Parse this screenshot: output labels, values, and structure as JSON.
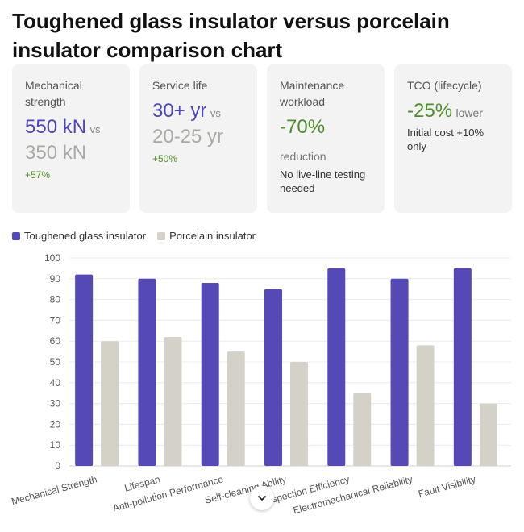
{
  "title": "Toughened glass insulator versus porcelain insulator comparison chart",
  "cards": {
    "mechanical": {
      "label": "Mechanical strength",
      "glass": "550 kN",
      "vs": "vs",
      "porcelain": "350 kN",
      "delta": "+57%"
    },
    "service": {
      "label": "Service life",
      "glass": "30+ yr",
      "vs": "vs",
      "porcelain": "20-25 yr",
      "delta": "+50%"
    },
    "maintenance": {
      "label": "Maintenance workload",
      "value": "-70%",
      "sub": "reduction",
      "note": "No live-line testing needed"
    },
    "tco": {
      "label": "TCO (lifecycle)",
      "value": "-25%",
      "sub": "lower",
      "note": "Initial cost +10% only"
    }
  },
  "colors": {
    "glass": "#5449b7",
    "porcelain": "#d3d1c8",
    "positive": "#4f8f2a"
  },
  "chart_data": {
    "type": "bar",
    "categories": [
      "Mechanical Strength",
      "Lifespan",
      "Anti-pollution Performance",
      "Self-cleaning Ability",
      "Inspection Efficiency",
      "Electromechanical Reliability",
      "Fault Visibility"
    ],
    "series": [
      {
        "name": "Toughened glass insulator",
        "values": [
          92,
          90,
          88,
          85,
          95,
          90,
          95
        ]
      },
      {
        "name": "Porcelain insulator",
        "values": [
          60,
          62,
          55,
          50,
          35,
          58,
          30
        ]
      }
    ],
    "ylim": [
      0,
      100
    ],
    "yticks": [
      0,
      10,
      20,
      30,
      40,
      50,
      60,
      70,
      80,
      90,
      100
    ],
    "grid": true,
    "legend": "top-left"
  },
  "scroll_icon": "chevron-down-icon"
}
